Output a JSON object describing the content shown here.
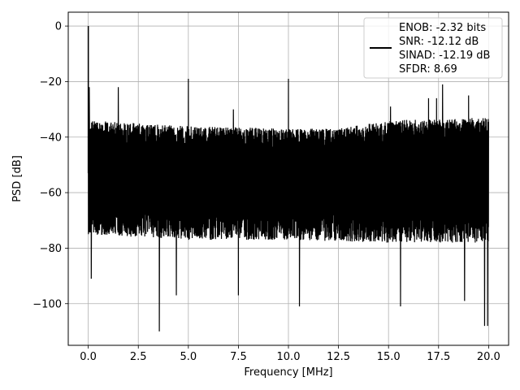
{
  "chart_data": {
    "type": "line",
    "title": "",
    "xlabel": "Frequency [MHz]",
    "ylabel": "PSD [dB]",
    "xlim": [
      -1.0,
      21.0
    ],
    "ylim": [
      -115,
      5
    ],
    "x_ticks": [
      0.0,
      2.5,
      5.0,
      7.5,
      10.0,
      12.5,
      15.0,
      17.5,
      20.0
    ],
    "x_tick_labels": [
      "0.0",
      "2.5",
      "5.0",
      "7.5",
      "10.0",
      "12.5",
      "15.0",
      "17.5",
      "20.0"
    ],
    "y_ticks": [
      0,
      -20,
      -40,
      -60,
      -80,
      -100
    ],
    "y_tick_labels": [
      "0",
      "−20",
      "−40",
      "−60",
      "−80",
      "−100"
    ],
    "grid": true,
    "legend_position": "top-right",
    "legend_lines": [
      "ENOB: -2.32 bits",
      "SNR: -12.12 dB",
      "SINAD: -12.19 dB",
      "SFDR: 8.69"
    ],
    "series": [
      {
        "color": "#000000",
        "x_range": [
          0.0,
          20.0
        ],
        "noise_floor_upper": [
          [
            0.0,
            -34
          ],
          [
            5.0,
            -36
          ],
          [
            10.0,
            -37
          ],
          [
            12.5,
            -37
          ],
          [
            15.0,
            -34
          ],
          [
            20.0,
            -33
          ]
        ],
        "noise_floor_lower": [
          [
            0.0,
            -75
          ],
          [
            5.0,
            -77
          ],
          [
            10.0,
            -77
          ],
          [
            15.0,
            -78
          ],
          [
            20.0,
            -78
          ]
        ],
        "noise_floor_center": -56,
        "spikes": [
          {
            "x": 0.0,
            "y": 0
          },
          {
            "x": 0.05,
            "y": -22
          },
          {
            "x": 1.5,
            "y": -22
          },
          {
            "x": 5.0,
            "y": -19
          },
          {
            "x": 7.25,
            "y": -30
          },
          {
            "x": 10.0,
            "y": -19
          },
          {
            "x": 15.1,
            "y": -29
          },
          {
            "x": 17.0,
            "y": -26
          },
          {
            "x": 17.4,
            "y": -26
          },
          {
            "x": 17.7,
            "y": -21
          },
          {
            "x": 19.0,
            "y": -25
          }
        ],
        "dips": [
          {
            "x": 0.15,
            "y": -91
          },
          {
            "x": 3.55,
            "y": -110
          },
          {
            "x": 4.4,
            "y": -97
          },
          {
            "x": 7.5,
            "y": -97
          },
          {
            "x": 10.55,
            "y": -101
          },
          {
            "x": 15.6,
            "y": -101
          },
          {
            "x": 18.8,
            "y": -99
          },
          {
            "x": 19.8,
            "y": -108
          },
          {
            "x": 19.95,
            "y": -108
          }
        ]
      }
    ]
  }
}
